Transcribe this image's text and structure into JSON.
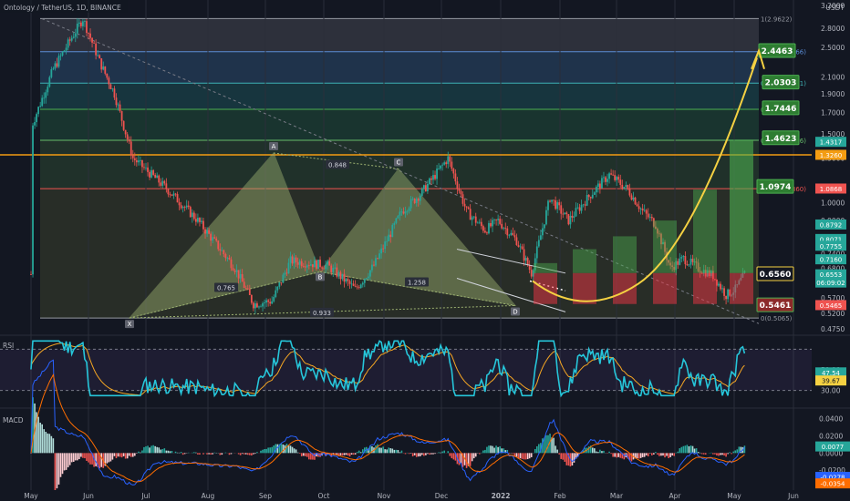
{
  "header": {
    "title": "Ontology / TetherUS, 1D, BINANCE"
  },
  "colors": {
    "bg": "#131722",
    "up": "#26a69a",
    "down": "#ef5350",
    "grid": "#2a2e39",
    "pattern": "#9db271",
    "target": "#4caf50",
    "stop": "#f23645",
    "curve": "#f5d142",
    "horizontal": "#f39c12",
    "rsi": "#26c6da",
    "rsi_ma": "#f5a623"
  },
  "chart_data": [
    {
      "type": "candlestick",
      "name": "price",
      "scale": "log",
      "price_unit": "USDT",
      "ylim": [
        0.46,
        3.2
      ],
      "x_ticks": [
        "May",
        "Jun",
        "Jul",
        "Aug",
        "Sep",
        "Oct",
        "Nov",
        "Dec",
        "2022",
        "Feb",
        "Mar",
        "Apr",
        "May",
        "Jun"
      ],
      "y_ticks": [
        "3.2000",
        "2.8000",
        "2.5000",
        "2.1000",
        "1.9000",
        "1.7000",
        "1.5000",
        "1.3000",
        "1.1000",
        "1.0000",
        "0.9000",
        "0.7400",
        "0.6800",
        "0.6300",
        "0.5700",
        "0.5200",
        "0.4750"
      ],
      "candles_ohlc_anchor_path": [
        [
          1,
          1.6
        ],
        [
          12,
          2.2
        ],
        [
          28,
          2.962
        ],
        [
          37,
          2.3
        ],
        [
          45,
          1.9
        ],
        [
          55,
          1.3
        ],
        [
          72,
          1.1
        ],
        [
          90,
          0.9
        ],
        [
          110,
          0.68
        ],
        [
          120,
          0.55
        ],
        [
          130,
          0.56
        ],
        [
          140,
          0.71
        ],
        [
          160,
          0.69
        ],
        [
          175,
          0.6
        ],
        [
          185,
          0.69
        ],
        [
          200,
          0.95
        ],
        [
          210,
          1.05
        ],
        [
          225,
          1.3
        ],
        [
          235,
          0.95
        ],
        [
          245,
          0.85
        ],
        [
          252,
          0.9
        ],
        [
          262,
          0.8
        ],
        [
          270,
          0.66
        ],
        [
          280,
          1.03
        ],
        [
          290,
          0.9
        ],
        [
          302,
          1.05
        ],
        [
          312,
          1.18
        ],
        [
          322,
          1.08
        ],
        [
          330,
          0.95
        ],
        [
          337,
          0.88
        ],
        [
          345,
          0.68
        ],
        [
          352,
          0.72
        ],
        [
          360,
          0.68
        ],
        [
          368,
          0.65
        ],
        [
          375,
          0.58
        ],
        [
          380,
          0.6
        ],
        [
          385,
          0.6553
        ]
      ],
      "fib_levels": [
        {
          "label": "1(2.9622)",
          "price": 2.9622
        },
        {
          "label": "0.786(2.4366)",
          "price": 2.4366
        },
        {
          "label": "0.618(2.0241)",
          "price": 2.0241
        },
        {
          "label": "0.5(1.7343)",
          "price": 1.7343
        },
        {
          "label": "0.382(1.4446)",
          "price": 1.4446
        },
        {
          "label": "0.236(1.0860)",
          "price": 1.086
        },
        {
          "label": "0(0.5065)",
          "price": 0.5065
        }
      ],
      "harmonic_points": [
        "X",
        "A",
        "B",
        "C",
        "D"
      ],
      "harmonic_ratios": [
        "0.765",
        "0.848",
        "1.258",
        "0.933"
      ],
      "targets": [
        "2.4463",
        "2.0303",
        "1.7446",
        "1.4623",
        "1.0974",
        "0.6560",
        "0.5461"
      ],
      "price_tags": [
        {
          "text": "1.4317",
          "kind": "green"
        },
        {
          "text": "1.3260",
          "kind": "orange"
        },
        {
          "text": "1.0868",
          "kind": "red"
        },
        {
          "text": "0.8792",
          "kind": "green"
        },
        {
          "text": "0.8071",
          "kind": "green"
        },
        {
          "text": "0.7755",
          "kind": "green"
        },
        {
          "text": "0.7160",
          "kind": "green"
        },
        {
          "text": "0.6553",
          "kind": "teal"
        },
        {
          "text": "06:09:02",
          "kind": "teal"
        },
        {
          "text": "0.5465",
          "kind": "red"
        }
      ],
      "legend_top_right": "USDT"
    },
    {
      "type": "line",
      "name": "RSI",
      "label": "RSI",
      "y_ticks": [
        "50.00",
        "30.00"
      ],
      "tags": [
        "47.54",
        "39.67"
      ]
    },
    {
      "type": "histogram",
      "name": "MACD",
      "label": "MACD",
      "y_ticks": [
        "0.0400",
        "0.0200",
        "0.0000",
        "-0.0200"
      ],
      "tags": [
        "0.0077",
        "0.0000",
        "-0.0278",
        "-0.0354"
      ]
    }
  ]
}
